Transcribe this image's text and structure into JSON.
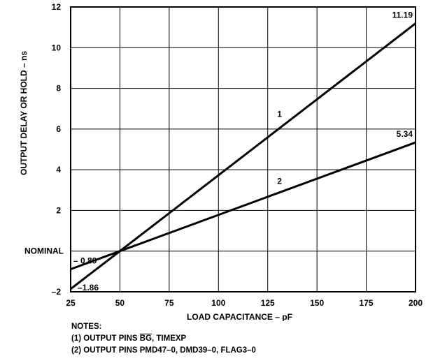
{
  "chart_data": {
    "type": "line",
    "xlabel": "LOAD CAPACITANCE – pF",
    "ylabel": "OUTPUT DELAY OR HOLD – ns",
    "xlim": [
      25,
      200
    ],
    "ylim": [
      -2,
      12
    ],
    "x_ticks": [
      "25",
      "50",
      "75",
      "100",
      "125",
      "150",
      "175",
      "200"
    ],
    "y_ticks": [
      "–2",
      "2",
      "4",
      "6",
      "8",
      "10",
      "12"
    ],
    "y_tick_values": [
      -2,
      2,
      4,
      6,
      8,
      10,
      12
    ],
    "x_tick_values": [
      25,
      50,
      75,
      100,
      125,
      150,
      175,
      200
    ],
    "nominal_label": "NOMINAL",
    "nominal_value": 0,
    "grid": true,
    "series": [
      {
        "name": "1",
        "x": [
          25,
          50,
          200
        ],
        "y": [
          -1.86,
          0,
          11.19
        ]
      },
      {
        "name": "2",
        "x": [
          25,
          50,
          200
        ],
        "y": [
          -0.89,
          0,
          5.34
        ]
      }
    ],
    "annotations": [
      {
        "text": "11.19",
        "x": 200,
        "y": 11.19
      },
      {
        "text": "5.34",
        "x": 200,
        "y": 5.34
      },
      {
        "text": "– 0.89",
        "x": 25,
        "y": -0.89
      },
      {
        "text": "–1.86",
        "x": 25,
        "y": -1.86
      }
    ],
    "series_labels": [
      {
        "text": "1",
        "x": 131,
        "y": 6.6
      },
      {
        "text": "2",
        "x": 131,
        "y": 3.3
      }
    ]
  },
  "notes": {
    "heading": "NOTES:",
    "note1_prefix": "(1) OUTPUT PINS ",
    "note1_overline": "BG",
    "note1_suffix": ", TIMEXP",
    "note2": "(2) OUTPUT PINS PMD47–0, DMD39–0, FLAG3–0"
  }
}
